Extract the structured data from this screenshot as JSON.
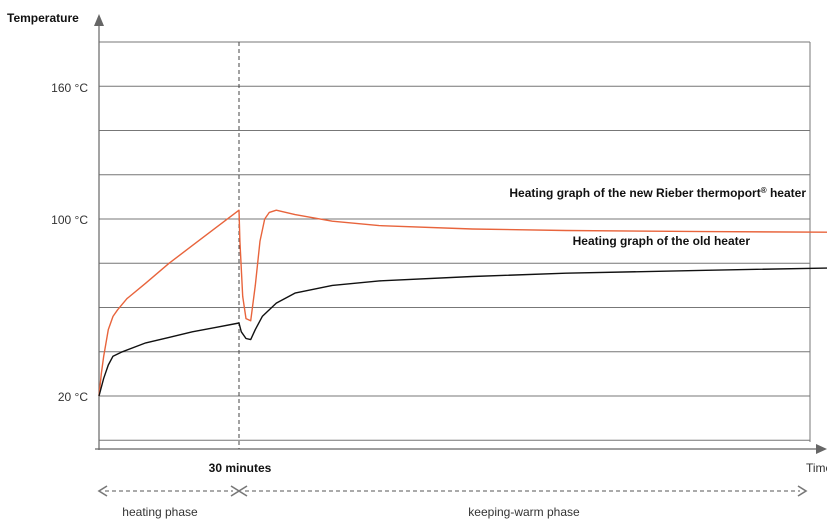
{
  "chart_data": {
    "type": "line",
    "ylabel": "Temperature",
    "xlabel": "Time",
    "y_ticks": [
      {
        "label": "160 °C",
        "value": 160
      },
      {
        "label": "100 °C",
        "value": 100
      },
      {
        "label": "20 °C",
        "value": 20
      }
    ],
    "ylim": [
      0,
      180
    ],
    "xlim": [
      0,
      160
    ],
    "grid": true,
    "marker": {
      "label": "30 minutes",
      "x": 30
    },
    "phases": [
      {
        "label": "heating phase",
        "from": 0,
        "to": 30
      },
      {
        "label": "keeping-warm phase",
        "from": 30,
        "to": 160
      }
    ],
    "series": [
      {
        "name": "Heating graph of the new Rieber thermoport® heater",
        "color": "#e8643c",
        "points": [
          [
            0,
            20
          ],
          [
            0.5,
            30
          ],
          [
            1,
            38
          ],
          [
            2,
            50
          ],
          [
            3,
            56
          ],
          [
            4,
            59
          ],
          [
            6,
            64
          ],
          [
            10,
            71
          ],
          [
            15,
            80
          ],
          [
            20,
            88
          ],
          [
            25,
            96
          ],
          [
            30,
            104
          ],
          [
            30.2,
            90
          ],
          [
            30.8,
            65
          ],
          [
            31.5,
            55
          ],
          [
            32.5,
            54
          ],
          [
            33.5,
            70
          ],
          [
            34.5,
            90
          ],
          [
            35.5,
            100
          ],
          [
            36.5,
            103
          ],
          [
            38,
            104
          ],
          [
            42,
            102
          ],
          [
            50,
            99
          ],
          [
            60,
            97
          ],
          [
            80,
            95.5
          ],
          [
            100,
            94.8
          ],
          [
            130,
            94.3
          ],
          [
            160,
            94
          ]
        ]
      },
      {
        "name": "Heating graph of the old heater",
        "color": "#111111",
        "points": [
          [
            0,
            20
          ],
          [
            1,
            28
          ],
          [
            2,
            34
          ],
          [
            3,
            38
          ],
          [
            5,
            40
          ],
          [
            10,
            44
          ],
          [
            15,
            46.5
          ],
          [
            20,
            49
          ],
          [
            25,
            51
          ],
          [
            30,
            53
          ],
          [
            30.5,
            49
          ],
          [
            31.5,
            46
          ],
          [
            32.5,
            45.5
          ],
          [
            33.5,
            50
          ],
          [
            35,
            56
          ],
          [
            38,
            62
          ],
          [
            42,
            66.5
          ],
          [
            50,
            70
          ],
          [
            60,
            72
          ],
          [
            80,
            74
          ],
          [
            100,
            75.5
          ],
          [
            130,
            76.8
          ],
          [
            160,
            78
          ]
        ]
      }
    ],
    "colors": {
      "grid": "#777777",
      "axis": "#666666",
      "marker": "#444444"
    }
  }
}
